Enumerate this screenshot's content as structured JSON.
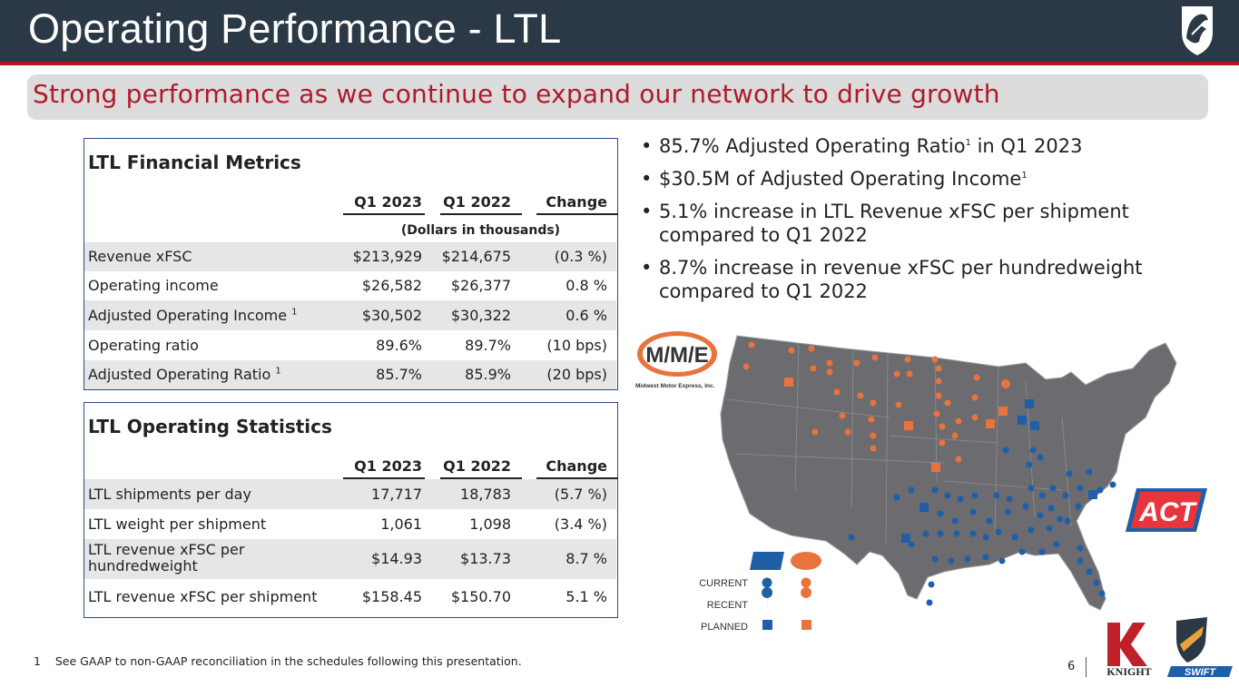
{
  "header": {
    "title": "Operating Performance - LTL",
    "subtitle": "Strong performance as we continue to expand our network to drive growth"
  },
  "financial_metrics": {
    "title": "LTL Financial Metrics",
    "columns": [
      "Q1 2023",
      "Q1 2022",
      "Change"
    ],
    "note": "(Dollars in thousands)",
    "rows": [
      {
        "label": "Revenue xFSC",
        "sup": "",
        "q1_2023": "$213,929",
        "q1_2022": "$214,675",
        "change": "(0.3 %)"
      },
      {
        "label": "Operating income",
        "sup": "",
        "q1_2023": "$26,582",
        "q1_2022": "$26,377",
        "change": "0.8 %"
      },
      {
        "label": "Adjusted Operating Income ",
        "sup": "1",
        "q1_2023": "$30,502",
        "q1_2022": "$30,322",
        "change": "0.6 %"
      },
      {
        "label": "Operating ratio",
        "sup": "",
        "q1_2023": "89.6%",
        "q1_2022": "89.7%",
        "change": "(10 bps)"
      },
      {
        "label": "Adjusted Operating Ratio ",
        "sup": "1",
        "q1_2023": "85.7%",
        "q1_2022": "85.9%",
        "change": "(20 bps)"
      }
    ]
  },
  "operating_statistics": {
    "title": "LTL Operating Statistics",
    "columns": [
      "Q1 2023",
      "Q1 2022",
      "Change"
    ],
    "rows": [
      {
        "label": "LTL shipments per day",
        "q1_2023": "17,717",
        "q1_2022": "18,783",
        "change": "(5.7 %)"
      },
      {
        "label": "LTL weight per shipment",
        "q1_2023": "1,061",
        "q1_2022": "1,098",
        "change": "(3.4 %)"
      },
      {
        "label_line1": "LTL revenue xFSC per",
        "label_line2": "hundredweight",
        "q1_2023": "$14.93",
        "q1_2022": "$13.73",
        "change": "8.7 %"
      },
      {
        "label": "LTL revenue xFSC per shipment",
        "q1_2023": "$158.45",
        "q1_2022": "$150.70",
        "change": "5.1 %"
      }
    ]
  },
  "bullets": [
    {
      "pre": "85.7% Adjusted Operating Ratio",
      "sup": "1",
      "post": " in Q1 2023"
    },
    {
      "pre": "$30.5M of Adjusted Operating Income",
      "sup": "1",
      "post": ""
    },
    {
      "pre": "5.1% increase in LTL Revenue xFSC per shipment compared to Q1 2022",
      "sup": "",
      "post": ""
    },
    {
      "pre": "8.7% increase in revenue xFSC per hundredweight compared to Q1 2022",
      "sup": "",
      "post": ""
    }
  ],
  "map": {
    "mme_logo_text": "M/M/E",
    "mme_caption": "Midwest Motor Express, Inc.",
    "act_logo_text": "ACT",
    "legend": {
      "current": "CURRENT",
      "recent": "RECENT",
      "planned": "PLANNED"
    },
    "colors": {
      "act": "#1f5fa8",
      "mme": "#e8743b",
      "map_fill": "#6b6b70",
      "map_stroke": "#9a9aa0"
    }
  },
  "brand": {
    "knight": "KNIGHT",
    "swift": "SWIFT"
  },
  "footer": {
    "footnote_num": "1",
    "footnote_text": "See GAAP to non-GAAP reconciliation in the schedules following this presentation.",
    "page": "6"
  }
}
